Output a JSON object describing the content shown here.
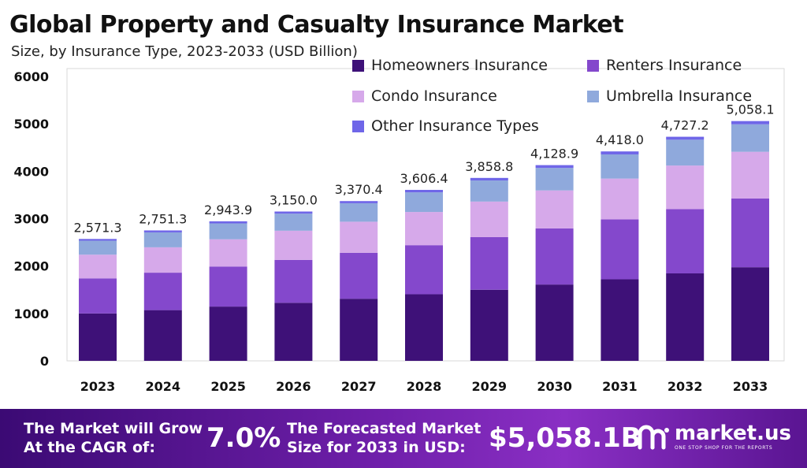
{
  "header": {
    "title": "Global Property and Casualty Insurance Market",
    "subtitle": "Size, by Insurance Type, 2023-2033 (USD Billion)"
  },
  "colors": {
    "homeowners": "#3e1178",
    "renters": "#8448cc",
    "condo": "#d6a9ea",
    "umbrella": "#8fa9dc",
    "other": "#6f66e8"
  },
  "chart_data": {
    "type": "bar",
    "stacked": true,
    "categories": [
      "2023",
      "2024",
      "2025",
      "2026",
      "2027",
      "2028",
      "2029",
      "2030",
      "2031",
      "2032",
      "2033"
    ],
    "series": [
      {
        "name": "Homeowners Insurance",
        "color_key": "homeowners",
        "values": [
          1000,
          1070,
          1145,
          1225,
          1310,
          1405,
          1500,
          1610,
          1720,
          1845,
          1975
        ]
      },
      {
        "name": "Renters Insurance",
        "color_key": "renters",
        "values": [
          740,
          790,
          845,
          905,
          970,
          1035,
          1110,
          1185,
          1265,
          1355,
          1450
        ]
      },
      {
        "name": "Condo Insurance",
        "color_key": "condo",
        "values": [
          500,
          535,
          575,
          615,
          655,
          700,
          750,
          800,
          860,
          920,
          985
        ]
      },
      {
        "name": "Umbrella Insurance",
        "color_key": "umbrella",
        "values": [
          295,
          315,
          335,
          360,
          390,
          415,
          445,
          475,
          510,
          545,
          580
        ]
      },
      {
        "name": "Other Insurance Types",
        "color_key": "other",
        "values": [
          36.3,
          41.3,
          43.9,
          45.0,
          45.4,
          51.4,
          53.8,
          58.9,
          63.0,
          62.2,
          68.1
        ]
      }
    ],
    "totals": [
      "2,571.3",
      "2,751.3",
      "2,943.9",
      "3,150.0",
      "3,370.4",
      "3,606.4",
      "3,858.8",
      "4,128.9",
      "4,418.0",
      "4,727.2",
      "5,058.1"
    ],
    "total_values": [
      2571.3,
      2751.3,
      2943.9,
      3150.0,
      3370.4,
      3606.4,
      3858.8,
      4128.9,
      4418.0,
      4727.2,
      5058.1
    ],
    "ylim": [
      0,
      6000
    ],
    "yticks": [
      "0",
      "1000",
      "2000",
      "3000",
      "4000",
      "5000",
      "6000"
    ],
    "ytick_values": [
      0,
      1000,
      2000,
      3000,
      4000,
      5000,
      6000
    ],
    "grid": false,
    "legend_position": "top-right",
    "title": "Global Property and Casualty Insurance Market",
    "xlabel": "",
    "ylabel": ""
  },
  "footer": {
    "cagr_label_line1": "The Market will Grow",
    "cagr_label_line2": "At the CAGR of:",
    "cagr_value": "7.0%",
    "forecast_label_line1": "The Forecasted Market",
    "forecast_label_line2": "Size for 2033 in USD:",
    "forecast_value": "$5,058.1B",
    "brand_name": "market.us",
    "brand_tagline": "ONE STOP SHOP FOR THE REPORTS",
    "brand_icon": "market-us-logo-icon"
  }
}
